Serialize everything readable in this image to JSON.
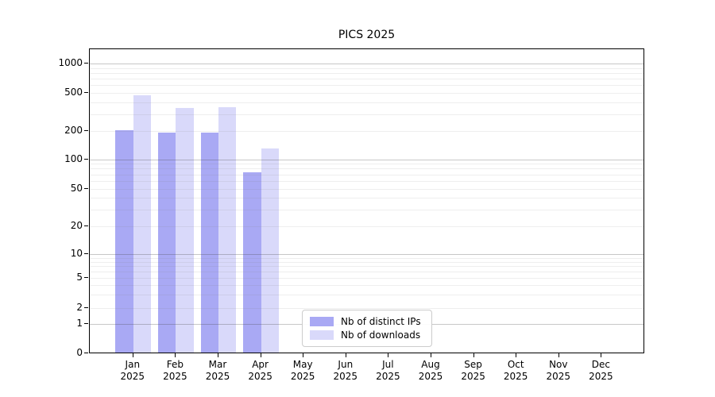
{
  "chart_data": {
    "type": "bar",
    "title": "PICS 2025",
    "categories": [
      "Jan",
      "Feb",
      "Mar",
      "Apr",
      "May",
      "Jun",
      "Jul",
      "Aug",
      "Sep",
      "Oct",
      "Nov",
      "Dec"
    ],
    "category_year": "2025",
    "series": [
      {
        "name": "Nb of distinct IPs",
        "color": "#a9a9f4",
        "values": [
          200,
          190,
          190,
          72,
          null,
          null,
          null,
          null,
          null,
          null,
          null,
          null
        ]
      },
      {
        "name": "Nb of downloads",
        "color": "#d9d9fa",
        "values": [
          460,
          340,
          345,
          128,
          null,
          null,
          null,
          null,
          null,
          null,
          null,
          null
        ]
      }
    ],
    "xlabel": "",
    "ylabel": "",
    "y_axis": {
      "scale": "symlog",
      "ticks": [
        0,
        1,
        2,
        5,
        10,
        20,
        50,
        100,
        200,
        500,
        1000
      ],
      "ylim": [
        0,
        1400
      ]
    },
    "legend": {
      "position": "lower center"
    },
    "grid": true,
    "background_color": "#ffffff"
  }
}
